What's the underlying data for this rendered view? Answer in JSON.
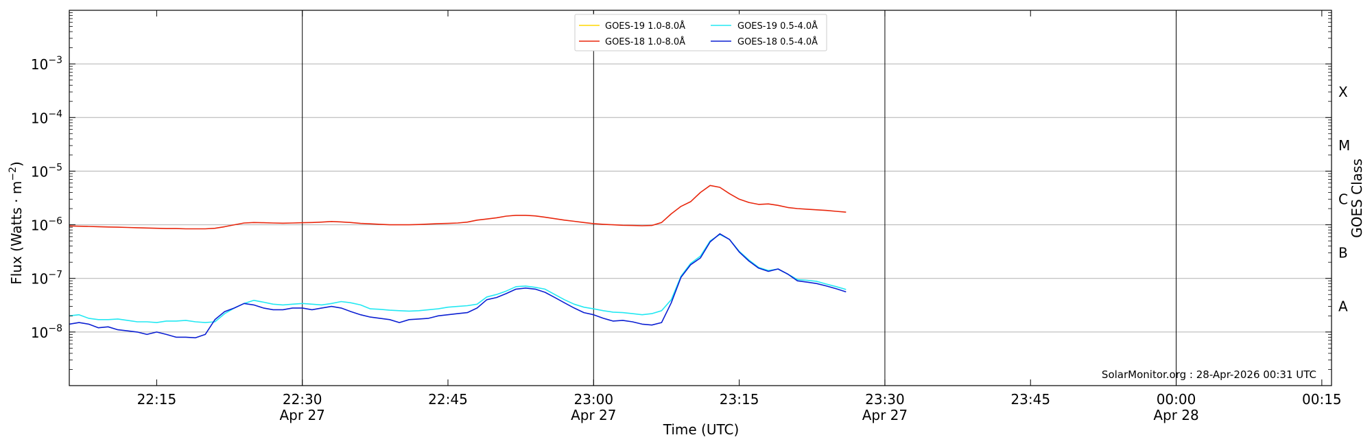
{
  "chart_data": {
    "type": "line",
    "title": "",
    "xlabel": "Time (UTC)",
    "ylabel": "Flux (Watts · m",
    "ylabel_sup": "−2",
    "ylabel_close": ")",
    "right_axis_label": "GOES Class",
    "watermark": "SolarMonitor.org : 28-Apr-2026 00:31 UTC",
    "y_scale": "log",
    "ylim": [
      "1e-9",
      "1e-2"
    ],
    "xlim": [
      "2026-04-27 22:06",
      "2026-04-28 00:16"
    ],
    "x_ticks": [
      {
        "time": "2026-04-27 22:15",
        "label": "22:15",
        "sublabel": ""
      },
      {
        "time": "2026-04-27 22:30",
        "label": "22:30",
        "sublabel": "Apr 27"
      },
      {
        "time": "2026-04-27 22:45",
        "label": "22:45",
        "sublabel": ""
      },
      {
        "time": "2026-04-27 23:00",
        "label": "23:00",
        "sublabel": "Apr 27"
      },
      {
        "time": "2026-04-27 23:15",
        "label": "23:15",
        "sublabel": ""
      },
      {
        "time": "2026-04-27 23:30",
        "label": "23:30",
        "sublabel": "Apr 27"
      },
      {
        "time": "2026-04-27 23:45",
        "label": "23:45",
        "sublabel": ""
      },
      {
        "time": "2026-04-28 00:00",
        "label": "00:00",
        "sublabel": "Apr 28"
      },
      {
        "time": "2026-04-28 00:15",
        "label": "00:15",
        "sublabel": ""
      }
    ],
    "vertical_lines": [
      "2026-04-27 22:30",
      "2026-04-27 23:00",
      "2026-04-27 23:30",
      "2026-04-28 00:00"
    ],
    "y_ticks": [
      {
        "value": "1e-8",
        "base": "10",
        "exp": "−8"
      },
      {
        "value": "1e-7",
        "base": "10",
        "exp": "−7"
      },
      {
        "value": "1e-6",
        "base": "10",
        "exp": "−6"
      },
      {
        "value": "1e-5",
        "base": "10",
        "exp": "−5"
      },
      {
        "value": "1e-4",
        "base": "10",
        "exp": "−4"
      },
      {
        "value": "1e-3",
        "base": "10",
        "exp": "−3"
      }
    ],
    "goes_classes": [
      {
        "label": "A",
        "value": "3e-8"
      },
      {
        "label": "B",
        "value": "3e-7"
      },
      {
        "label": "C",
        "value": "3e-6"
      },
      {
        "label": "M",
        "value": "3e-5"
      },
      {
        "label": "X",
        "value": "3e-4"
      }
    ],
    "grid": true,
    "legend_position": "top-center",
    "legend": [
      {
        "label": "GOES-19 1.0-8.0Å",
        "color": "#ffd700"
      },
      {
        "label": "GOES-18 1.0-8.0Å",
        "color": "#e8260c"
      },
      {
        "label": "GOES-19 0.5-4.0Å",
        "color": "#22e8f2"
      },
      {
        "label": "GOES-18 0.5-4.0Å",
        "color": "#0a1ed2"
      }
    ],
    "x_times": [
      "22:06",
      "22:07",
      "22:08",
      "22:09",
      "22:10",
      "22:11",
      "22:12",
      "22:13",
      "22:14",
      "22:15",
      "22:16",
      "22:17",
      "22:18",
      "22:19",
      "22:20",
      "22:21",
      "22:22",
      "22:23",
      "22:24",
      "22:25",
      "22:26",
      "22:27",
      "22:28",
      "22:29",
      "22:30",
      "22:31",
      "22:32",
      "22:33",
      "22:34",
      "22:35",
      "22:36",
      "22:37",
      "22:38",
      "22:39",
      "22:40",
      "22:41",
      "22:42",
      "22:43",
      "22:44",
      "22:45",
      "22:46",
      "22:47",
      "22:48",
      "22:49",
      "22:50",
      "22:51",
      "22:52",
      "22:53",
      "22:54",
      "22:55",
      "22:56",
      "22:57",
      "22:58",
      "22:59",
      "23:00",
      "23:01",
      "23:02",
      "23:03",
      "23:04",
      "23:05",
      "23:06",
      "23:07",
      "23:08",
      "23:09",
      "23:10",
      "23:11",
      "23:12",
      "23:13",
      "23:14",
      "23:15",
      "23:16",
      "23:17",
      "23:18",
      "23:19",
      "23:20",
      "23:21",
      "23:22",
      "23:23",
      "23:24",
      "23:25",
      "23:26"
    ],
    "series": [
      {
        "name": "GOES-18 1.0-8.0Å",
        "color": "#e8260c",
        "values": [
          "9.5e-7",
          "9.4e-7",
          "9.3e-7",
          "9.2e-7",
          "9.1e-7",
          "9.0e-7",
          "8.9e-7",
          "8.8e-7",
          "8.7e-7",
          "8.6e-7",
          "8.5e-7",
          "8.5e-7",
          "8.4e-7",
          "8.4e-7",
          "8.4e-7",
          "8.6e-7",
          "9.2e-7",
          "1.0e-6",
          "1.08e-6",
          "1.1e-6",
          "1.09e-6",
          "1.08e-6",
          "1.07e-6",
          "1.08e-6",
          "1.09e-6",
          "1.1e-6",
          "1.12e-6",
          "1.15e-6",
          "1.13e-6",
          "1.1e-6",
          "1.06e-6",
          "1.04e-6",
          "1.02e-6",
          "1.0e-6",
          "1.0e-6",
          "1.0e-6",
          "1.01e-6",
          "1.03e-6",
          "1.05e-6",
          "1.06e-6",
          "1.08e-6",
          "1.12e-6",
          "1.22e-6",
          "1.28e-6",
          "1.35e-6",
          "1.45e-6",
          "1.5e-6",
          "1.5e-6",
          "1.46e-6",
          "1.38e-6",
          "1.3e-6",
          "1.22e-6",
          "1.16e-6",
          "1.1e-6",
          "1.05e-6",
          "1.02e-6",
          "1.0e-6",
          "9.8e-7",
          "9.7e-7",
          "9.6e-7",
          "9.7e-7",
          "1.1e-6",
          "1.6e-6",
          "2.2e-6",
          "2.7e-6",
          "4.0e-6",
          "5.4e-6",
          "5.0e-6",
          "3.8e-6",
          "3.0e-6",
          "2.6e-6",
          "2.4e-6",
          "2.45e-6",
          "2.3e-6",
          "2.1e-6",
          "2.0e-6",
          "1.95e-6",
          "1.9e-6",
          "1.85e-6",
          "1.78e-6",
          "1.72e-6"
        ]
      },
      {
        "name": "GOES-19 0.5-4.0Å",
        "color": "#22e8f2",
        "values": [
          "2.0e-8",
          "2.1e-8",
          "1.8e-8",
          "1.7e-8",
          "1.7e-8",
          "1.75e-8",
          "1.65e-8",
          "1.55e-8",
          "1.55e-8",
          "1.5e-8",
          "1.6e-8",
          "1.6e-8",
          "1.65e-8",
          "1.55e-8",
          "1.5e-8",
          "1.55e-8",
          "2.2e-8",
          "2.8e-8",
          "3.4e-8",
          "3.9e-8",
          "3.6e-8",
          "3.3e-8",
          "3.2e-8",
          "3.3e-8",
          "3.4e-8",
          "3.3e-8",
          "3.2e-8",
          "3.4e-8",
          "3.7e-8",
          "3.5e-8",
          "3.2e-8",
          "2.7e-8",
          "2.65e-8",
          "2.55e-8",
          "2.5e-8",
          "2.45e-8",
          "2.5e-8",
          "2.6e-8",
          "2.7e-8",
          "2.9e-8",
          "3.0e-8",
          "3.1e-8",
          "3.3e-8",
          "4.5e-8",
          "5.0e-8",
          "5.8e-8",
          "7.0e-8",
          "7.2e-8",
          "6.8e-8",
          "6.3e-8",
          "5.0e-8",
          "4.0e-8",
          "3.3e-8",
          "2.9e-8",
          "2.7e-8",
          "2.5e-8",
          "2.35e-8",
          "2.3e-8",
          "2.2e-8",
          "2.1e-8",
          "2.2e-8",
          "2.5e-8",
          "4.0e-8",
          "1.1e-7",
          "1.9e-7",
          "2.6e-7",
          "5.0e-7",
          "6.6e-7",
          "5.3e-7",
          "3.2e-7",
          "2.2e-7",
          "1.6e-7",
          "1.4e-7",
          "1.5e-7",
          "1.2e-7",
          "9.5e-8",
          "9.2e-8",
          "8.8e-8",
          "7.8e-8",
          "7.0e-8",
          "6.2e-8"
        ]
      },
      {
        "name": "GOES-18 0.5-4.0Å",
        "color": "#0a1ed2",
        "values": [
          "1.4e-8",
          "1.5e-8",
          "1.4e-8",
          "1.2e-8",
          "1.25e-8",
          "1.1e-8",
          "1.05e-8",
          "1.0e-8",
          "9.0e-9",
          "1.0e-8",
          "9.0e-9",
          "8.0e-9",
          "8.0e-9",
          "7.8e-9",
          "9.0e-9",
          "1.7e-8",
          "2.4e-8",
          "2.8e-8",
          "3.4e-8",
          "3.2e-8",
          "2.8e-8",
          "2.6e-8",
          "2.6e-8",
          "2.8e-8",
          "2.8e-8",
          "2.6e-8",
          "2.8e-8",
          "3.0e-8",
          "2.8e-8",
          "2.4e-8",
          "2.1e-8",
          "1.9e-8",
          "1.8e-8",
          "1.7e-8",
          "1.5e-8",
          "1.7e-8",
          "1.75e-8",
          "1.8e-8",
          "2.0e-8",
          "2.1e-8",
          "2.2e-8",
          "2.3e-8",
          "2.8e-8",
          "4.0e-8",
          "4.4e-8",
          "5.2e-8",
          "6.3e-8",
          "6.6e-8",
          "6.3e-8",
          "5.5e-8",
          "4.4e-8",
          "3.5e-8",
          "2.8e-8",
          "2.3e-8",
          "2.1e-8",
          "1.8e-8",
          "1.6e-8",
          "1.65e-8",
          "1.55e-8",
          "1.4e-8",
          "1.35e-8",
          "1.5e-8",
          "3.5e-8",
          "1.05e-7",
          "1.8e-7",
          "2.4e-7",
          "4.8e-7",
          "6.8e-7",
          "5.3e-7",
          "3.1e-7",
          "2.1e-7",
          "1.55e-7",
          "1.35e-7",
          "1.5e-7",
          "1.2e-7",
          "9.0e-8",
          "8.5e-8",
          "8.0e-8",
          "7.2e-8",
          "6.4e-8",
          "5.6e-8"
        ]
      }
    ]
  }
}
